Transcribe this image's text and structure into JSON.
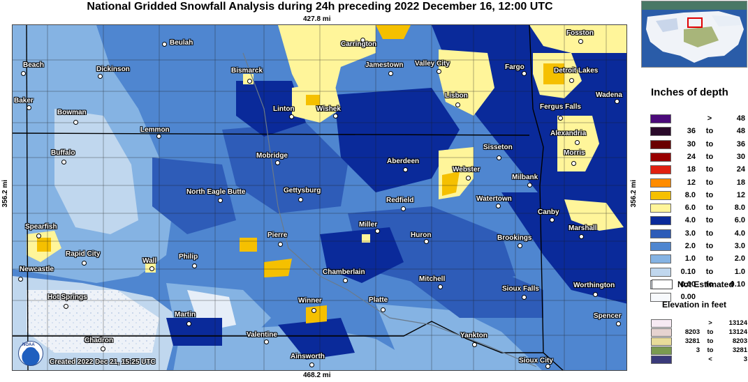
{
  "title": "National Gridded Snowfall Analysis during 24h preceding 2022 December 16, 12:00 UTC",
  "distances": {
    "top": "427.8 mi",
    "bottom": "468.2 mi",
    "left": "356.2 mi",
    "right": "356.2 mi"
  },
  "created": "Created 2022 Dec 21, 15:25 UTC",
  "noaa_label": "NOAA",
  "legend": {
    "title": "Inches of depth",
    "items": [
      {
        "from": "",
        "sep": ">",
        "to": "48",
        "color": "#4b0a7a"
      },
      {
        "from": "36",
        "sep": "to",
        "to": "48",
        "color": "#2a0a2a"
      },
      {
        "from": "30",
        "sep": "to",
        "to": "36",
        "color": "#6a0000"
      },
      {
        "from": "24",
        "sep": "to",
        "to": "30",
        "color": "#990000"
      },
      {
        "from": "18",
        "sep": "to",
        "to": "24",
        "color": "#e02010"
      },
      {
        "from": "12",
        "sep": "to",
        "to": "18",
        "color": "#ff8c00"
      },
      {
        "from": "8.0",
        "sep": "to",
        "to": "12",
        "color": "#f5c000"
      },
      {
        "from": "6.0",
        "sep": "to",
        "to": "8.0",
        "color": "#fff59a"
      },
      {
        "from": "4.0",
        "sep": "to",
        "to": "6.0",
        "color": "#0a2a9a"
      },
      {
        "from": "3.0",
        "sep": "to",
        "to": "4.0",
        "color": "#2e5cb8"
      },
      {
        "from": "2.0",
        "sep": "to",
        "to": "3.0",
        "color": "#4f86d0"
      },
      {
        "from": "1.0",
        "sep": "to",
        "to": "2.0",
        "color": "#85b3e3"
      },
      {
        "from": "0.10",
        "sep": "to",
        "to": "1.0",
        "color": "#c0d7ee"
      },
      {
        "from": "0.00",
        "sep": "to",
        "to": "0.10",
        "color": "#e6eef8"
      },
      {
        "from": "0.00",
        "sep": "",
        "to": "",
        "color": "#f7f9fc"
      }
    ],
    "not_estimated": "Not Estimated",
    "elevation_title": "Elevation in feet",
    "elevation": [
      {
        "from": "",
        "sep": ">",
        "to": "13124",
        "color": "#f7eaf3"
      },
      {
        "from": "8203",
        "sep": "to",
        "to": "13124",
        "color": "#e6d3d0"
      },
      {
        "from": "3281",
        "sep": "to",
        "to": "8203",
        "color": "#e8dc9a"
      },
      {
        "from": "3",
        "sep": "to",
        "to": "3281",
        "color": "#7a9a50"
      },
      {
        "from": "",
        "sep": "<",
        "to": "3",
        "color": "#3a3a7a"
      }
    ]
  },
  "cities": [
    {
      "name": "Fosston"
    },
    {
      "name": "Carrington"
    },
    {
      "name": "Beulah"
    },
    {
      "name": "Beach"
    },
    {
      "name": "Dickinson"
    },
    {
      "name": "Bismarck"
    },
    {
      "name": "Jamestown"
    },
    {
      "name": "Valley City"
    },
    {
      "name": "Fargo"
    },
    {
      "name": "Detroit Lakes"
    },
    {
      "name": "Wadena"
    },
    {
      "name": "Baker"
    },
    {
      "name": "Bowman"
    },
    {
      "name": "Linton"
    },
    {
      "name": "Wishek"
    },
    {
      "name": "Lisbon"
    },
    {
      "name": "Fergus Falls"
    },
    {
      "name": "Lemmon"
    },
    {
      "name": "Alexandria"
    },
    {
      "name": "Buffalo"
    },
    {
      "name": "Mobridge"
    },
    {
      "name": "Sisseton"
    },
    {
      "name": "Morris"
    },
    {
      "name": "Aberdeen"
    },
    {
      "name": "Webster"
    },
    {
      "name": "Milbank"
    },
    {
      "name": "North Eagle Butte"
    },
    {
      "name": "Gettysburg"
    },
    {
      "name": "Redfield"
    },
    {
      "name": "Watertown"
    },
    {
      "name": "Canby"
    },
    {
      "name": "Spearfish"
    },
    {
      "name": "Miller"
    },
    {
      "name": "Marshall"
    },
    {
      "name": "Pierre"
    },
    {
      "name": "Huron"
    },
    {
      "name": "Brookings"
    },
    {
      "name": "Rapid City"
    },
    {
      "name": "Philip"
    },
    {
      "name": "Wall"
    },
    {
      "name": "Newcastle"
    },
    {
      "name": "Chamberlain"
    },
    {
      "name": "Mitchell"
    },
    {
      "name": "Worthington"
    },
    {
      "name": "Sioux Falls"
    },
    {
      "name": "Hot Springs"
    },
    {
      "name": "Winner"
    },
    {
      "name": "Platte"
    },
    {
      "name": "Martin"
    },
    {
      "name": "Spencer"
    },
    {
      "name": "Valentine"
    },
    {
      "name": "Yankton"
    },
    {
      "name": "Chadron"
    },
    {
      "name": "Ainsworth"
    },
    {
      "name": "Sioux City"
    }
  ]
}
